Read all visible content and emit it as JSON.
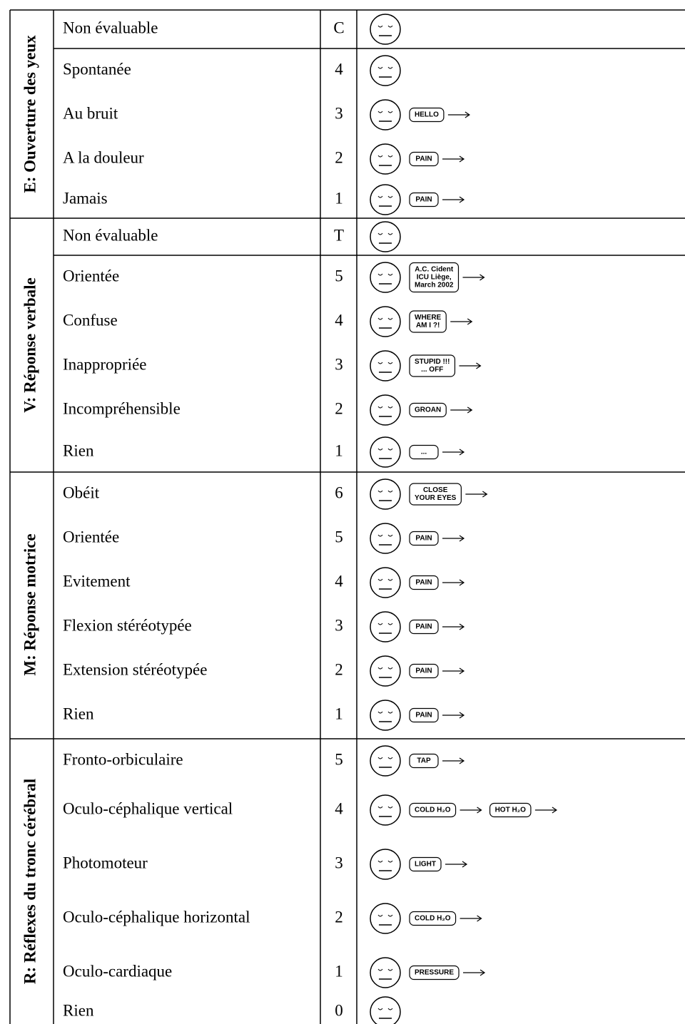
{
  "sections": [
    {
      "title": "E: Ouverture des yeux",
      "rows": [
        {
          "label": "Non évaluable",
          "score": "C"
        },
        {
          "label": "Spontanée",
          "score": 4
        },
        {
          "label": "Au bruit",
          "score": 3,
          "figure_texts": [
            "HELLO"
          ]
        },
        {
          "label": "A la douleur",
          "score": 2,
          "figure_texts": [
            "PAIN"
          ]
        },
        {
          "label": "Jamais",
          "score": 1,
          "figure_texts": [
            "PAIN"
          ]
        }
      ]
    },
    {
      "title": "V: Réponse verbale",
      "rows": [
        {
          "label": "Non évaluable",
          "score": "T"
        },
        {
          "label": "Orientée",
          "score": 5,
          "figure_texts": [
            [
              "A.C. Cident",
              "ICU Liège,",
              "March 2002"
            ]
          ]
        },
        {
          "label": "Confuse",
          "score": 4,
          "figure_texts": [
            [
              "WHERE",
              "AM I ?!"
            ]
          ]
        },
        {
          "label": "Inappropriée",
          "score": 3,
          "figure_texts": [
            [
              "STUPID !!!",
              "... OFF"
            ]
          ]
        },
        {
          "label": "Incompréhensible",
          "score": 2,
          "figure_texts": [
            "GROAN"
          ]
        },
        {
          "label": "Rien",
          "score": 1,
          "figure_texts": [
            "..."
          ]
        }
      ]
    },
    {
      "title": "M: Réponse motrice",
      "rows": [
        {
          "label": "Obéit",
          "score": 6,
          "figure_texts": [
            [
              "CLOSE",
              "YOUR EYES"
            ]
          ]
        },
        {
          "label": "Orientée",
          "score": 5,
          "figure_texts": [
            "PAIN"
          ]
        },
        {
          "label": "Evitement",
          "score": 4,
          "figure_texts": [
            "PAIN"
          ]
        },
        {
          "label": "Flexion stéréotypée",
          "score": 3,
          "figure_texts": [
            "PAIN"
          ]
        },
        {
          "label": "Extension stéréotypée",
          "score": 2,
          "figure_texts": [
            "PAIN"
          ]
        },
        {
          "label": "Rien",
          "score": 1,
          "figure_texts": [
            "PAIN"
          ]
        }
      ]
    },
    {
      "title": "R: Réflexes du tronc cérébral",
      "rows": [
        {
          "label": "Fronto-orbiculaire",
          "score": 5,
          "figure_texts": [
            "TAP"
          ]
        },
        {
          "label": "Oculo-céphalique vertical",
          "score": 4,
          "figure_texts": [
            "COLD H₂O",
            "HOT H₂O"
          ]
        },
        {
          "label": "Photomoteur",
          "score": 3,
          "figure_texts": [
            "LIGHT"
          ]
        },
        {
          "label": "Oculo-céphalique horizontal",
          "score": 2,
          "figure_texts": [
            "COLD H₂O"
          ]
        },
        {
          "label": "Oculo-cardiaque",
          "score": 1,
          "figure_texts": [
            "PRESSURE"
          ]
        },
        {
          "label": "Rien",
          "score": 0
        }
      ]
    }
  ]
}
